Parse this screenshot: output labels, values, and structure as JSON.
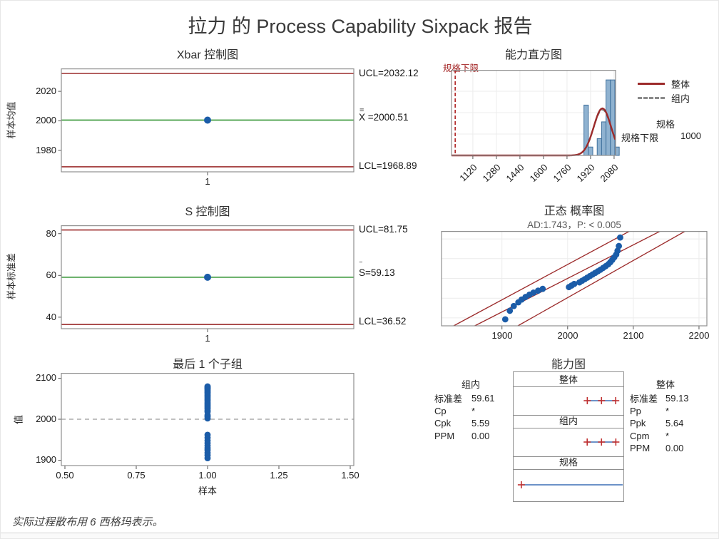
{
  "title": "拉力 的 Process Capability Sixpack 报告",
  "footnote": "实际过程散布用 6 西格玛表示。",
  "colors": {
    "limit_red": "#9c2b2b",
    "center_green": "#379637",
    "point_blue": "#1b5ca8",
    "bar_fill": "#8fb2d0",
    "bar_stroke": "#40719e",
    "spec_line_red": "#b02525",
    "interval_blue": "#3b6fb5",
    "cross_red": "#c03030",
    "dashed_gray": "#8a8a8a",
    "frame_gray": "#8f8f8f",
    "grid_gray": "#ececec"
  },
  "xbar_chart": {
    "title": "Xbar 控制图",
    "y_label": "样本均值",
    "y_ticks": [
      "2020",
      "2000",
      "1980"
    ],
    "x_tick": "1",
    "ucl_label": "UCL=2032.12",
    "center_accent": "=",
    "center_symbol": "X",
    "center_value": " =2000.51",
    "lcl_label": "LCL=1968.89"
  },
  "s_chart": {
    "title": "S 控制图",
    "y_label": "样本标准差",
    "y_ticks": [
      "80",
      "60",
      "40"
    ],
    "x_tick": "1",
    "ucl_label": "UCL=81.75",
    "center_accent": "‾",
    "center_symbol": "S",
    "center_value": "=59.13",
    "lcl_label": "LCL=36.52"
  },
  "histogram": {
    "title": "能力直方图",
    "lsl_flag": "规格下限",
    "x_ticks": [
      "1120",
      "1280",
      "1440",
      "1600",
      "1760",
      "1920",
      "2080"
    ],
    "legend": {
      "overall": "整体",
      "within": "组内"
    },
    "spec_header": "规格",
    "spec_label": "规格下限",
    "spec_value": "1000"
  },
  "prob_plot": {
    "title": "正态 概率图",
    "subtitle": "AD:1.743，P: < 0.005",
    "x_ticks": [
      "1900",
      "2000",
      "2100",
      "2200"
    ]
  },
  "last_subgroup": {
    "title": "最后 1 个子组",
    "y_label": "值",
    "x_label": "样本",
    "y_ticks": [
      "2100",
      "2000",
      "1900"
    ],
    "x_ticks": [
      "0.50",
      "0.75",
      "1.00",
      "1.25",
      "1.50"
    ]
  },
  "capability": {
    "title": "能力图",
    "panel_headers": [
      "整体",
      "组内",
      "规格"
    ],
    "within_stats": {
      "header": "组内",
      "rows": [
        {
          "label": "标准差",
          "value": "59.61"
        },
        {
          "label": "Cp",
          "value": "*"
        },
        {
          "label": "Cpk",
          "value": "5.59"
        },
        {
          "label": "PPM",
          "value": "0.00"
        }
      ]
    },
    "overall_stats": {
      "header": "整体",
      "rows": [
        {
          "label": "标准差",
          "value": "59.13"
        },
        {
          "label": "Pp",
          "value": "*"
        },
        {
          "label": "Ppk",
          "value": "5.64"
        },
        {
          "label": "Cpm",
          "value": "*"
        },
        {
          "label": "PPM",
          "value": "0.00"
        }
      ]
    }
  },
  "chart_data": [
    {
      "id": "xbar",
      "type": "line",
      "title": "Xbar 控制图",
      "ylabel": "样本均值",
      "x": [
        1
      ],
      "values": [
        2000.51
      ],
      "ucl": 2032.12,
      "center": 2000.51,
      "lcl": 1968.89,
      "ylim": [
        1965.5,
        2035.5
      ],
      "yticks": [
        2020,
        2000,
        1980
      ],
      "xticks": [
        1
      ]
    },
    {
      "id": "s",
      "type": "line",
      "title": "S 控制图",
      "ylabel": "样本标准差",
      "x": [
        1
      ],
      "values": [
        59.13
      ],
      "ucl": 81.75,
      "center": 59.13,
      "lcl": 36.52,
      "ylim": [
        34.5,
        84
      ],
      "yticks": [
        80,
        60,
        40
      ],
      "xticks": [
        1
      ]
    },
    {
      "id": "histogram",
      "type": "histogram",
      "title": "能力直方图",
      "lsl": 1000,
      "bin_width": 30,
      "bin_starts": [
        1875,
        1905,
        1935,
        1965,
        1995,
        2025,
        2055,
        2085
      ],
      "counts": [
        6,
        1,
        0,
        2,
        4,
        9,
        9,
        1
      ],
      "xticks": [
        1120,
        1280,
        1440,
        1600,
        1760,
        1920,
        2080
      ],
      "xlim": [
        975,
        2090
      ],
      "count_axis_max": 10.2,
      "overall_curve": {
        "mean": 2000.51,
        "sd": 59.13
      },
      "within_curve": {
        "mean": 2000.51,
        "sd": 59.61
      }
    },
    {
      "id": "prob",
      "type": "scatter",
      "title": "正态 概率图",
      "ad": 1.743,
      "p_value": "< 0.005",
      "xticks": [
        1900,
        2000,
        2100,
        2200
      ],
      "xlim": [
        1808,
        2212
      ],
      "fit": {
        "mean": 2000.51,
        "sd": 59.13
      },
      "points": [
        [
          1905,
          -2.07
        ],
        [
          1912,
          -1.64
        ],
        [
          1918,
          -1.4
        ],
        [
          1925,
          -1.21
        ],
        [
          1930,
          -1.07
        ],
        [
          1936,
          -0.94
        ],
        [
          1942,
          -0.82
        ],
        [
          1948,
          -0.72
        ],
        [
          1955,
          -0.62
        ],
        [
          1962,
          -0.53
        ],
        [
          2002,
          -0.44
        ],
        [
          2006,
          -0.36
        ],
        [
          2010,
          -0.28
        ],
        [
          2018,
          -0.2
        ],
        [
          2022,
          -0.12
        ],
        [
          2026,
          -0.04
        ],
        [
          2030,
          0.04
        ],
        [
          2034,
          0.12
        ],
        [
          2038,
          0.2
        ],
        [
          2042,
          0.28
        ],
        [
          2046,
          0.36
        ],
        [
          2050,
          0.44
        ],
        [
          2054,
          0.53
        ],
        [
          2058,
          0.62
        ],
        [
          2062,
          0.72
        ],
        [
          2065,
          0.82
        ],
        [
          2068,
          0.94
        ],
        [
          2071,
          1.07
        ],
        [
          2074,
          1.21
        ],
        [
          2076,
          1.4
        ],
        [
          2078,
          1.64
        ],
        [
          2080,
          2.07
        ]
      ]
    },
    {
      "id": "last_subgroup",
      "type": "scatter",
      "title": "最后 1 个子组",
      "xlabel": "样本",
      "ylabel": "值",
      "subgroup_x": 1,
      "values": [
        1905,
        1912,
        1918,
        1925,
        1930,
        1936,
        1942,
        1948,
        1955,
        1962,
        2002,
        2006,
        2010,
        2018,
        2022,
        2026,
        2030,
        2034,
        2038,
        2042,
        2046,
        2050,
        2054,
        2058,
        2062,
        2065,
        2068,
        2071,
        2074,
        2076,
        2078,
        2080
      ],
      "center_reference": 2000,
      "ylim": [
        1887,
        2113
      ],
      "xlim": [
        0.4875,
        1.5125
      ],
      "yticks": [
        2100,
        2000,
        1900
      ],
      "xticks": [
        0.5,
        0.75,
        1.0,
        1.25,
        1.5
      ]
    },
    {
      "id": "capability",
      "type": "interval",
      "title": "能力图",
      "xlim": [
        903,
        2274
      ],
      "rows": [
        {
          "label": "整体",
          "low": 1823.12,
          "mid": 2000.51,
          "high": 2177.9
        },
        {
          "label": "组内",
          "low": 1821.68,
          "mid": 2000.51,
          "high": 2179.34
        },
        {
          "label": "规格",
          "low": 1000,
          "high": null,
          "open_ended": true
        }
      ],
      "within": {
        "stdev": 59.61,
        "cp": null,
        "cpk": 5.59,
        "ppm": 0.0
      },
      "overall": {
        "stdev": 59.13,
        "pp": null,
        "ppk": 5.64,
        "cpm": null,
        "ppm": 0.0
      }
    }
  ]
}
